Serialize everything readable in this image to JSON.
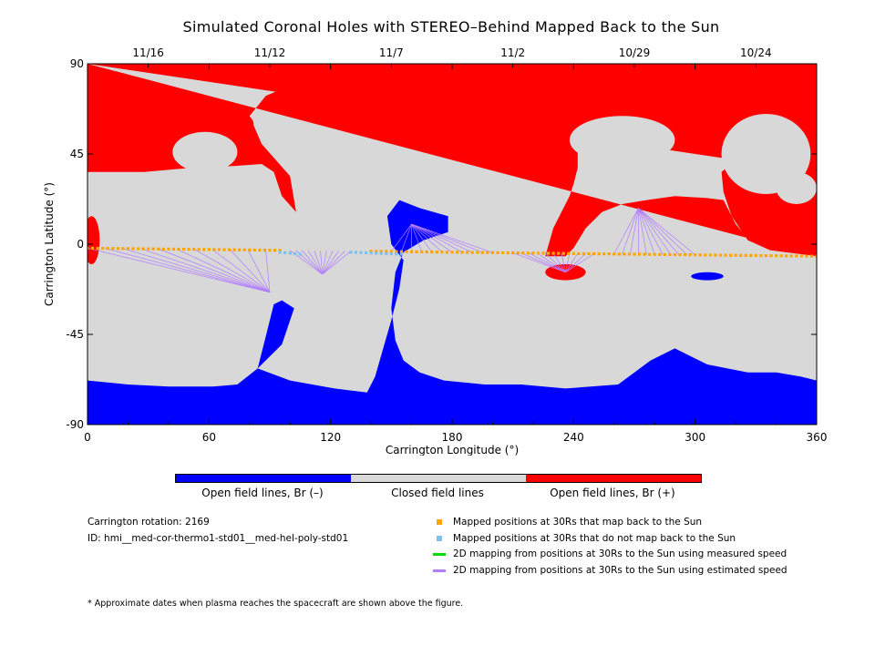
{
  "title": "Simulated Coronal Holes with STEREO–Behind Mapped Back to the Sun",
  "chart_data": {
    "type": "heatmap",
    "xlabel": "Carrington Longitude (°)",
    "ylabel": "Carrington Latitude (°)",
    "xlim": [
      0,
      360
    ],
    "ylim": [
      -90,
      90
    ],
    "x_ticks": [
      0,
      60,
      120,
      180,
      240,
      300,
      360
    ],
    "y_ticks": [
      90,
      45,
      0,
      -45,
      -90
    ],
    "top_dates": [
      {
        "lon": 30,
        "label": "11/16"
      },
      {
        "lon": 90,
        "label": "11/12"
      },
      {
        "lon": 150,
        "label": "11/7"
      },
      {
        "lon": 210,
        "label": "11/2"
      },
      {
        "lon": 270,
        "label": "10/29"
      },
      {
        "lon": 330,
        "label": "10/24"
      }
    ],
    "categories": [
      "Open field lines, Br (–)",
      "Closed field lines",
      "Open field lines, Br (+)"
    ],
    "category_colors": [
      "#0000ff",
      "#d8d8d8",
      "#ff0000"
    ],
    "regions": {
      "background_color": "#d8d8d8",
      "positive_polar": {
        "color": "#ff0000",
        "outer_edge": [
          [
            0,
            90
          ],
          [
            360,
            90
          ],
          [
            360,
            -6
          ],
          [
            337,
            -3
          ],
          [
            326,
            2
          ],
          [
            318,
            14
          ],
          [
            314,
            26
          ],
          [
            313,
            36
          ],
          [
            320,
            42
          ],
          [
            332,
            44
          ],
          [
            342,
            42
          ],
          [
            352,
            38
          ],
          [
            360,
            36
          ]
        ],
        "boundary": [
          [
            0,
            90
          ],
          [
            0,
            36
          ],
          [
            28,
            36
          ],
          [
            50,
            38
          ],
          [
            72,
            39
          ],
          [
            86,
            40
          ],
          [
            92,
            36
          ],
          [
            96,
            24
          ],
          [
            103,
            16
          ],
          [
            100,
            34
          ],
          [
            86,
            50
          ],
          [
            80,
            64
          ],
          [
            88,
            74
          ],
          [
            102,
            80
          ],
          [
            124,
            83
          ],
          [
            140,
            84
          ],
          [
            158,
            85
          ],
          [
            176,
            86
          ],
          [
            194,
            86
          ],
          [
            212,
            85
          ],
          [
            228,
            84
          ],
          [
            236,
            82
          ],
          [
            240,
            72
          ],
          [
            236,
            64
          ],
          [
            240,
            56
          ],
          [
            242,
            48
          ],
          [
            242,
            38
          ],
          [
            240,
            30
          ],
          [
            238,
            24
          ],
          [
            234,
            16
          ],
          [
            230,
            8
          ],
          [
            226,
            -6
          ],
          [
            232,
            -6
          ],
          [
            236,
            -6
          ],
          [
            240,
            -2
          ],
          [
            246,
            8
          ],
          [
            254,
            16
          ],
          [
            264,
            20
          ],
          [
            276,
            22
          ],
          [
            290,
            24
          ],
          [
            306,
            23
          ],
          [
            314,
            22
          ],
          [
            320,
            10
          ],
          [
            326,
            3
          ],
          [
            338,
            -2
          ],
          [
            350,
            -3
          ],
          [
            360,
            -6
          ]
        ]
      },
      "negative_polar": {
        "color": "#0000ff",
        "boundary": [
          [
            0,
            -68
          ],
          [
            20,
            -70
          ],
          [
            40,
            -71
          ],
          [
            62,
            -71
          ],
          [
            74,
            -70
          ],
          [
            84,
            -62
          ],
          [
            88,
            -46
          ],
          [
            92,
            -30
          ],
          [
            96,
            -28
          ],
          [
            102,
            -32
          ],
          [
            96,
            -50
          ],
          [
            84,
            -62
          ],
          [
            100,
            -68
          ],
          [
            122,
            -72
          ],
          [
            138,
            -74
          ],
          [
            142,
            -66
          ],
          [
            146,
            -52
          ],
          [
            150,
            -38
          ],
          [
            154,
            -22
          ],
          [
            156,
            -8
          ],
          [
            150,
            0
          ],
          [
            148,
            14
          ],
          [
            154,
            22
          ],
          [
            164,
            18
          ],
          [
            178,
            14
          ],
          [
            178,
            6
          ],
          [
            166,
            2
          ],
          [
            156,
            -4
          ],
          [
            152,
            -14
          ],
          [
            150,
            -32
          ],
          [
            152,
            -48
          ],
          [
            156,
            -58
          ],
          [
            164,
            -64
          ],
          [
            176,
            -68
          ],
          [
            196,
            -70
          ],
          [
            214,
            -70
          ],
          [
            236,
            -72
          ],
          [
            262,
            -70
          ],
          [
            278,
            -58
          ],
          [
            290,
            -52
          ],
          [
            306,
            -60
          ],
          [
            326,
            -64
          ],
          [
            340,
            -64
          ],
          [
            352,
            -66
          ],
          [
            360,
            -68
          ],
          [
            360,
            -90
          ],
          [
            0,
            -90
          ]
        ]
      },
      "gray_blobs": [
        {
          "lon": 58,
          "lat": 46,
          "rx": 16,
          "ry": 10
        },
        {
          "lon": 80,
          "lat": 28,
          "rx": 8,
          "ry": 6
        },
        {
          "lon": 264,
          "lat": 52,
          "rx": 26,
          "ry": 12
        },
        {
          "lon": 335,
          "lat": 45,
          "rx": 22,
          "ry": 20
        },
        {
          "lon": 350,
          "lat": 28,
          "rx": 10,
          "ry": 8
        }
      ],
      "red_blobs": [
        {
          "lon": 78,
          "lat": 60,
          "rx": 4,
          "ry": 4
        },
        {
          "lon": 236,
          "lat": -14,
          "rx": 10,
          "ry": 4
        },
        {
          "lon": 2,
          "lat": 2,
          "rx": 4,
          "ry": 12
        }
      ],
      "blue_blobs": [
        {
          "lon": 306,
          "lat": -16,
          "rx": 8,
          "ry": 2
        }
      ]
    },
    "mapped_positions_orange": {
      "color": "#ffa500",
      "lon_ranges": [
        [
          0,
          95
        ],
        [
          140,
          360
        ]
      ],
      "lat_start": -2,
      "lat_end": -6
    },
    "mapped_positions_light_blue": {
      "color": "#7ec0ee",
      "lon_ranges": [
        [
          95,
          105
        ],
        [
          130,
          155
        ]
      ],
      "lat_start": -4,
      "lat_end": -5
    },
    "estimated_mappings": {
      "color": "#b37dff",
      "fans": [
        {
          "foot": [
            90,
            -24
          ],
          "from_lon": [
            0,
            88
          ]
        },
        {
          "foot": [
            116,
            -15
          ],
          "from_lon": [
            100,
            130
          ]
        },
        {
          "foot": [
            160,
            10
          ],
          "from_lon": [
            150,
            200
          ]
        },
        {
          "foot": [
            236,
            -14
          ],
          "from_lon": [
            210,
            250
          ]
        },
        {
          "foot": [
            272,
            18
          ],
          "from_lon": [
            260,
            300
          ]
        }
      ]
    }
  },
  "colorbar": {
    "label_negative": "Open field lines, Br (–)",
    "label_closed": "Closed field lines",
    "label_positive": "Open field lines, Br (+)"
  },
  "info": {
    "rotation": "Carrington rotation: 2169",
    "id": "ID: hmi__med-cor-thermo1-std01__med-hel-poly-std01"
  },
  "legend": [
    {
      "label": "Mapped positions at 30Rs that map back to the Sun",
      "color": "#ffa500",
      "marker": "square"
    },
    {
      "label": "Mapped positions at 30Rs that do not map back to the Sun",
      "color": "#7ec0ee",
      "marker": "square"
    },
    {
      "label": "2D mapping from positions at 30Rs to the Sun using measured speed",
      "color": "#00dd00",
      "marker": "line"
    },
    {
      "label": "2D mapping from positions at 30Rs to the Sun using estimated speed",
      "color": "#b37dff",
      "marker": "line"
    }
  ],
  "footnote": "* Approximate dates when plasma reaches the spacecraft are shown above the figure."
}
